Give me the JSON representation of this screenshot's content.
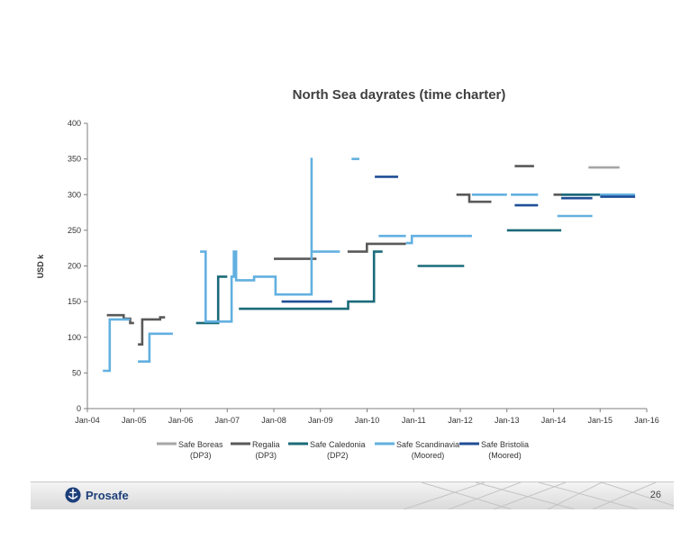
{
  "chart_data": {
    "type": "line",
    "title": "North Sea dayrates (time charter)",
    "xlabel": "",
    "ylabel": "USD k",
    "ylim": [
      0,
      400
    ],
    "yticks": [
      0,
      50,
      100,
      150,
      200,
      250,
      300,
      350,
      400
    ],
    "xticks": [
      "Jan-04",
      "Jan-05",
      "Jan-06",
      "Jan-07",
      "Jan-08",
      "Jan-09",
      "Jan-10",
      "Jan-11",
      "Jan-12",
      "Jan-13",
      "Jan-14",
      "Jan-15",
      "Jan-16"
    ],
    "xrange": [
      "2004-01",
      "2016-01"
    ],
    "grid": false,
    "legend_position": "bottom",
    "series": [
      {
        "name": "Safe Boreas (DP3)",
        "label": "Safe Boreas",
        "sublabel": "(DP3)",
        "color": "#a6a6a6",
        "segments": [
          {
            "from": "2014-10",
            "to": "2015-06",
            "values": [
              [
                0,
                338
              ]
            ]
          }
        ]
      },
      {
        "name": "Regalia (DP3)",
        "label": "Regalia",
        "sublabel": "(DP3)",
        "color": "#595959",
        "segments": [
          {
            "from": "2004-06",
            "to": "2005-01",
            "values": [
              [
                0,
                131
              ],
              [
                0.62,
                126
              ],
              [
                0.86,
                120
              ]
            ]
          },
          {
            "from": "2005-02",
            "to": "2005-09",
            "values": [
              [
                0,
                90
              ],
              [
                0.16,
                125
              ],
              [
                0.82,
                128
              ]
            ]
          },
          {
            "from": "2008-01",
            "to": "2008-12",
            "values": [
              [
                0,
                210
              ]
            ]
          },
          {
            "from": "2009-08",
            "to": "2010-11",
            "values": [
              [
                0,
                220
              ],
              [
                0.33,
                231
              ]
            ]
          },
          {
            "from": "2011-12",
            "to": "2012-09",
            "values": [
              [
                0,
                300
              ],
              [
                0.37,
                290
              ]
            ]
          },
          {
            "from": "2013-03",
            "to": "2013-08",
            "values": [
              [
                0,
                340
              ]
            ]
          },
          {
            "from": "2014-01",
            "to": "2014-10",
            "values": [
              [
                0,
                300
              ]
            ]
          }
        ]
      },
      {
        "name": "Safe Caledonia (DP2)",
        "label": "Safe Caledonia",
        "sublabel": "(DP2)",
        "color": "#1b6b7a",
        "segments": [
          {
            "from": "2006-05",
            "to": "2007-01",
            "values": [
              [
                0,
                120
              ],
              [
                0.71,
                185
              ]
            ]
          },
          {
            "from": "2007-04",
            "to": "2010-05",
            "values": [
              [
                0,
                140
              ],
              [
                0.76,
                150
              ],
              [
                0.94,
                220
              ]
            ]
          },
          {
            "from": "2011-02",
            "to": "2012-02",
            "values": [
              [
                0,
                200
              ]
            ]
          },
          {
            "from": "2013-01",
            "to": "2014-03",
            "values": [
              [
                0,
                250
              ]
            ]
          },
          {
            "from": "2014-03",
            "to": "2015-01",
            "values": [
              [
                0,
                300
              ]
            ]
          }
        ]
      },
      {
        "name": "Safe Scandinavia (Moored)",
        "label": "Safe Scandinavia",
        "sublabel": "(Moored)",
        "color": "#62b0e0",
        "segments": [
          {
            "from": "2004-05",
            "to": "2004-12",
            "values": [
              [
                0,
                53
              ],
              [
                0.25,
                125
              ]
            ]
          },
          {
            "from": "2005-02",
            "to": "2005-11",
            "values": [
              [
                0,
                66
              ],
              [
                0.33,
                105
              ]
            ]
          },
          {
            "from": "2006-06",
            "to": "2008-11",
            "values": [
              [
                0,
                220
              ],
              [
                0.05,
                122
              ],
              [
                0.28,
                185
              ],
              [
                0.3,
                220
              ],
              [
                0.32,
                180
              ],
              [
                0.48,
                185
              ],
              [
                0.67,
                160
              ],
              [
                0.99,
                350
              ]
            ]
          },
          {
            "from": "2008-11",
            "to": "2009-06",
            "values": [
              [
                0,
                220
              ]
            ]
          },
          {
            "from": "2009-09",
            "to": "2009-11",
            "values": [
              [
                0,
                350
              ]
            ]
          },
          {
            "from": "2010-04",
            "to": "2010-11",
            "values": [
              [
                0,
                242
              ]
            ]
          },
          {
            "from": "2010-11",
            "to": "2012-04",
            "values": [
              [
                0,
                232
              ],
              [
                0.09,
                242
              ]
            ]
          },
          {
            "from": "2012-04",
            "to": "2013-01",
            "values": [
              [
                0,
                300
              ]
            ]
          },
          {
            "from": "2013-02",
            "to": "2013-09",
            "values": [
              [
                0,
                300
              ]
            ]
          },
          {
            "from": "2014-02",
            "to": "2014-11",
            "values": [
              [
                0,
                270
              ]
            ]
          },
          {
            "from": "2015-01",
            "to": "2015-10",
            "values": [
              [
                0,
                300
              ]
            ]
          }
        ]
      },
      {
        "name": "Safe Bristolia (Moored)",
        "label": "Safe Bristolia",
        "sublabel": "(Moored)",
        "color": "#1f4e96",
        "segments": [
          {
            "from": "2008-03",
            "to": "2009-04",
            "values": [
              [
                0,
                150
              ]
            ]
          },
          {
            "from": "2010-03",
            "to": "2010-09",
            "values": [
              [
                0,
                325
              ]
            ]
          },
          {
            "from": "2013-03",
            "to": "2013-09",
            "values": [
              [
                0,
                285
              ]
            ]
          },
          {
            "from": "2014-03",
            "to": "2014-11",
            "values": [
              [
                0,
                295
              ]
            ]
          },
          {
            "from": "2015-01",
            "to": "2015-10",
            "values": [
              [
                0,
                297
              ]
            ]
          }
        ]
      }
    ]
  },
  "footer": {
    "logo_text": "Prosafe",
    "page_number": "26"
  }
}
